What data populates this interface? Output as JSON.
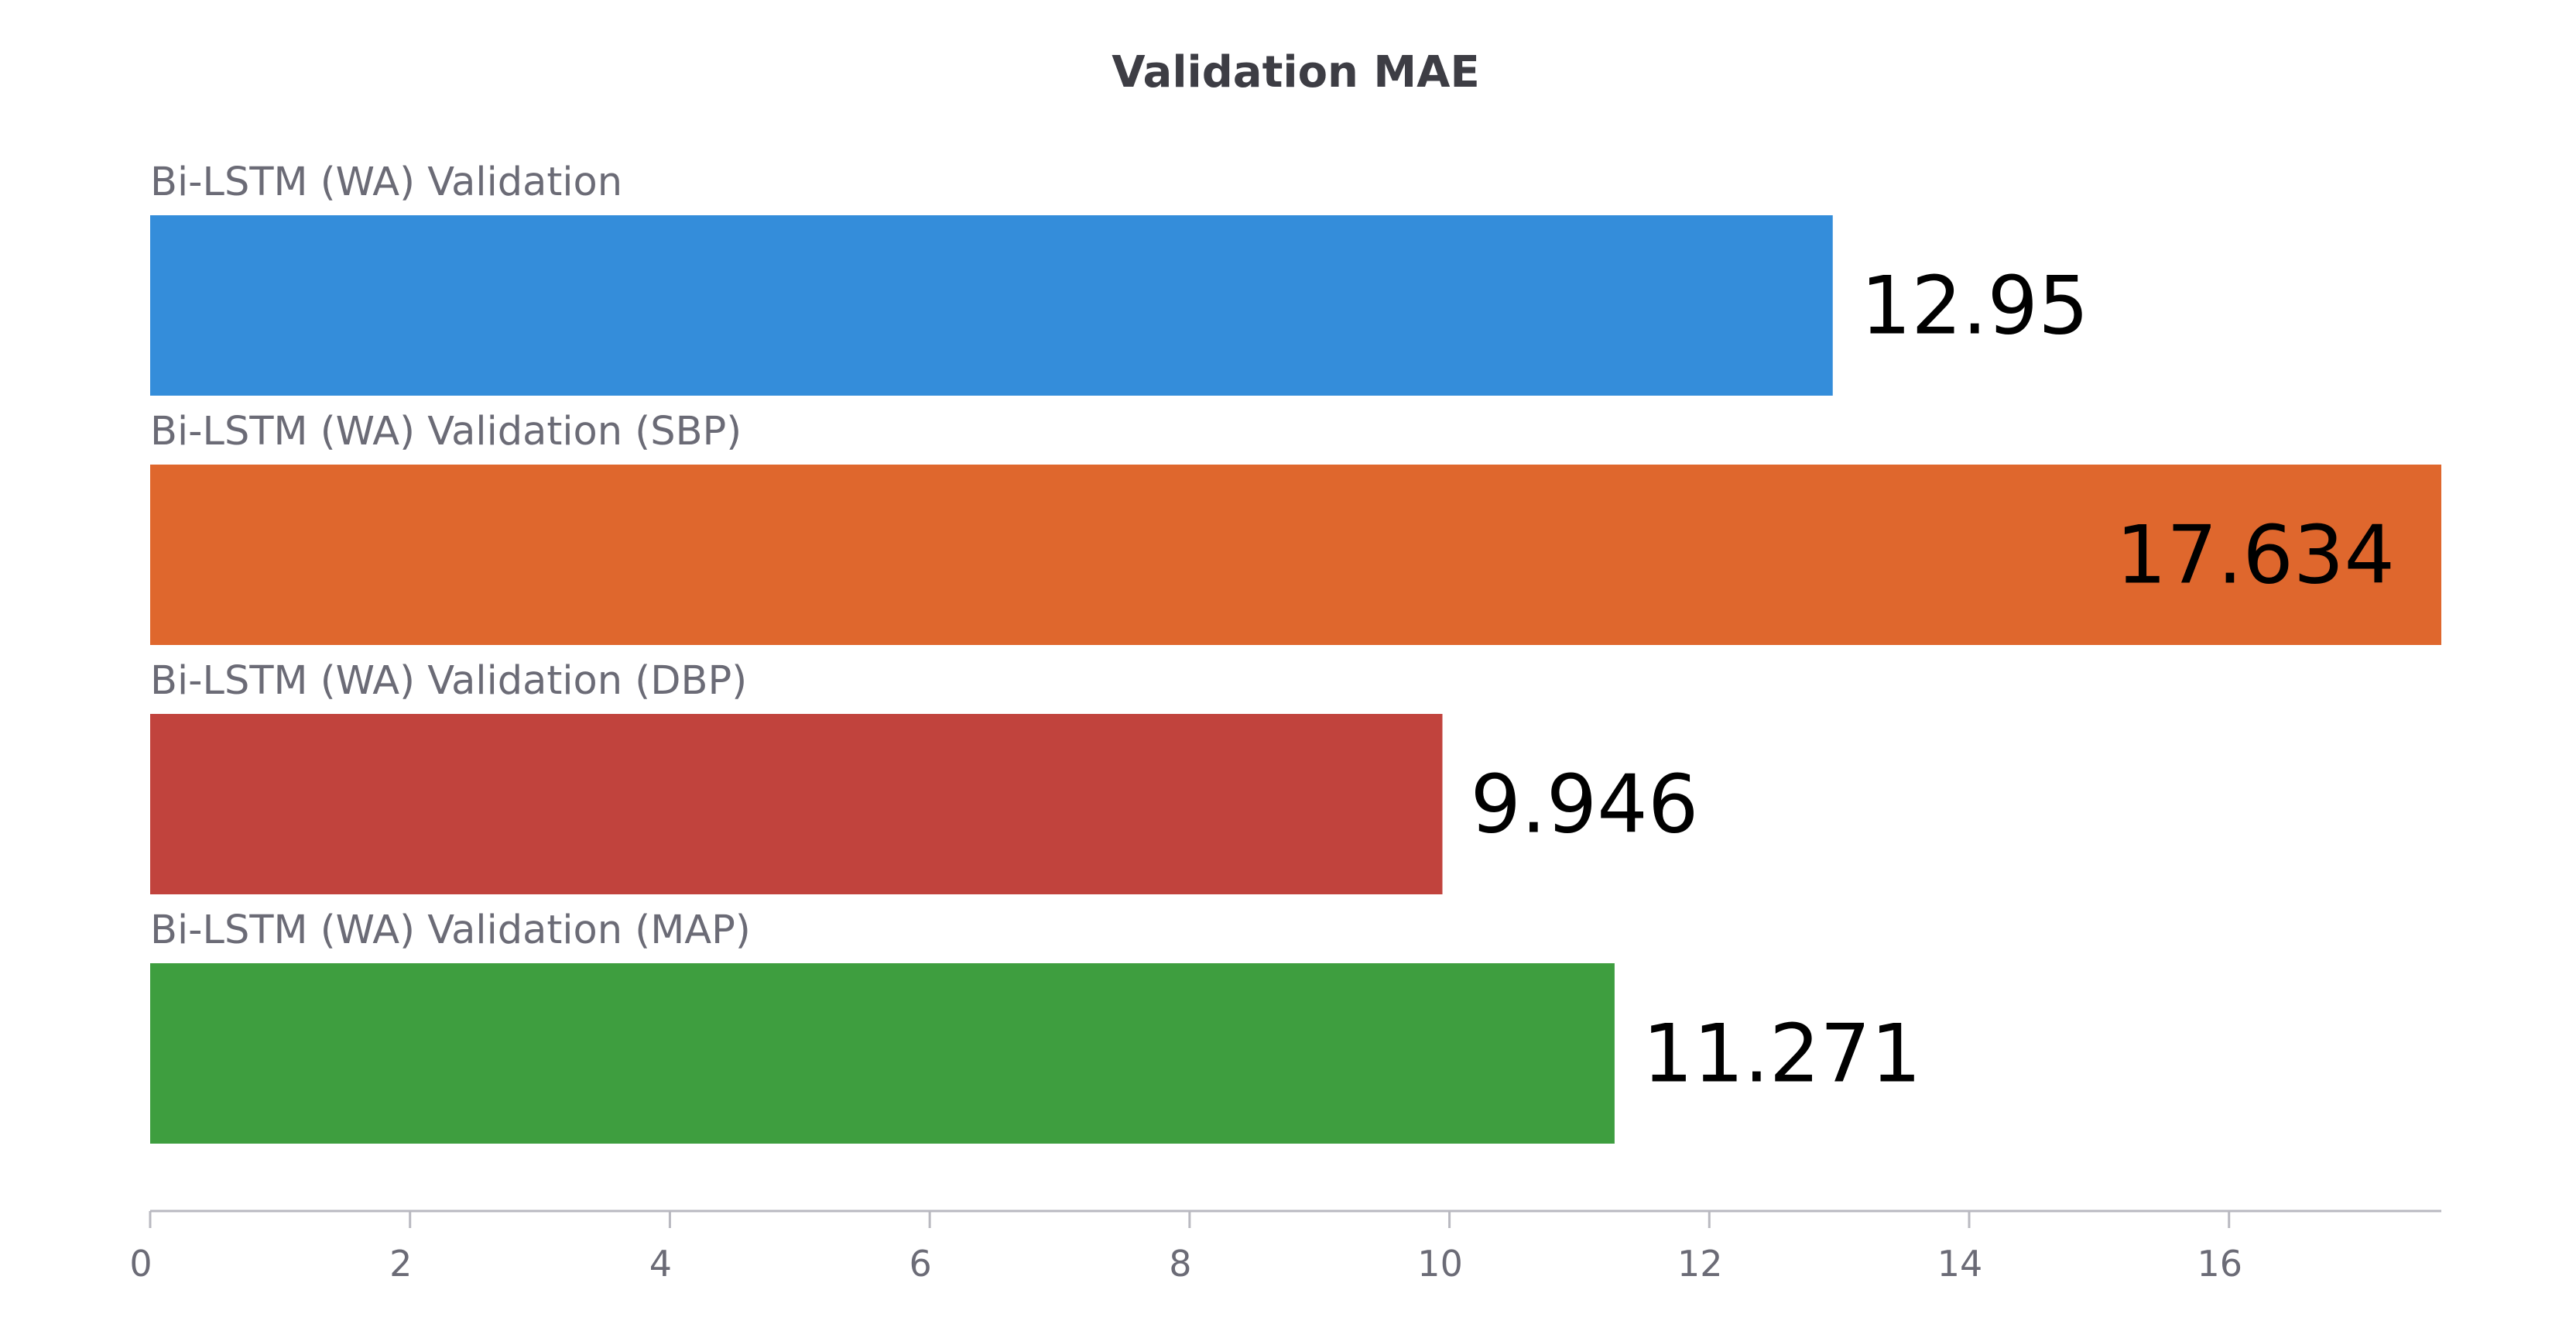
{
  "chart_data": {
    "type": "bar",
    "orientation": "horizontal",
    "title": "Validation MAE",
    "xlabel": "",
    "ylabel": "",
    "xlim": [
      0,
      17.634
    ],
    "ticks": [
      0,
      2,
      4,
      6,
      8,
      10,
      12,
      14,
      16
    ],
    "tick_labels": [
      "0",
      "2",
      "4",
      "6",
      "8",
      "10",
      "12",
      "14",
      "16"
    ],
    "grid": false,
    "legend": "none",
    "series": [
      {
        "name": "Bi-LSTM (WA) Validation",
        "value": 12.95,
        "value_label": "12.95",
        "color": "#348dda"
      },
      {
        "name": "Bi-LSTM (WA) Validation (SBP)",
        "value": 17.634,
        "value_label": "17.634",
        "color": "#df672d"
      },
      {
        "name": "Bi-LSTM (WA) Validation (DBP)",
        "value": 9.946,
        "value_label": "9.946",
        "color": "#c1433d"
      },
      {
        "name": "Bi-LSTM (WA) Validation (MAP)",
        "value": 11.271,
        "value_label": "11.271",
        "color": "#3e9e3f"
      }
    ]
  }
}
